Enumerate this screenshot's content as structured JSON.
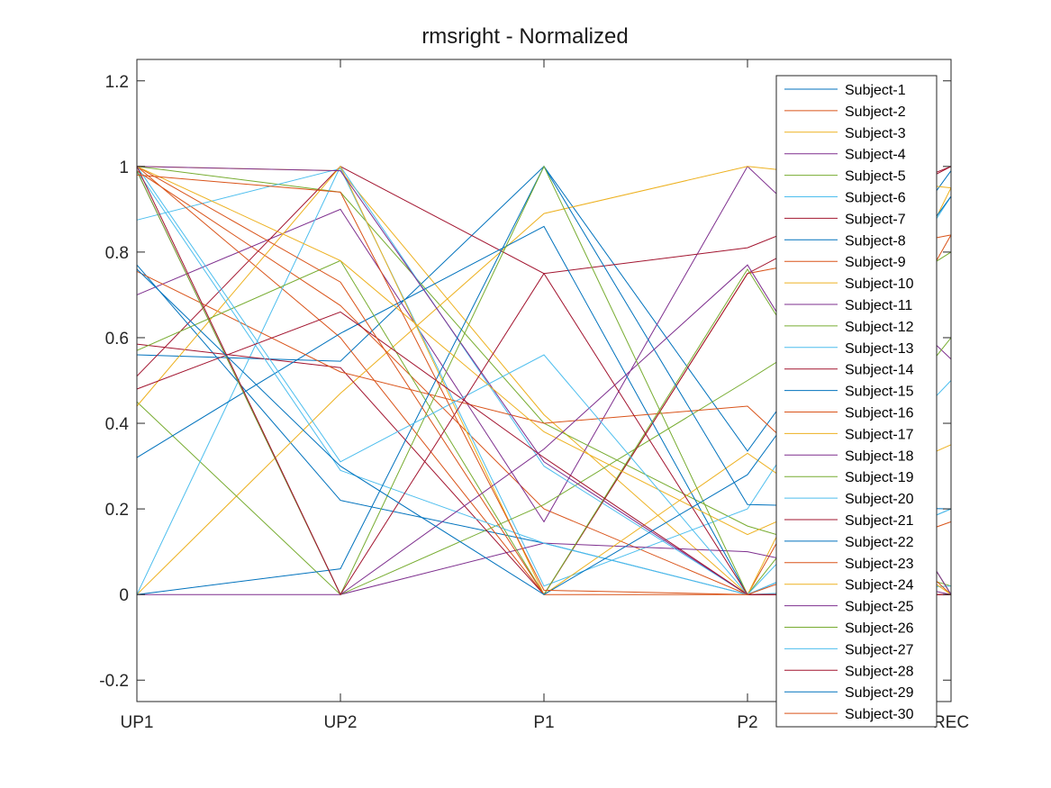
{
  "chart_data": {
    "type": "line",
    "title": "rmsright - Normalized",
    "categories": [
      "UP1",
      "UP2",
      "P1",
      "P2",
      "REC"
    ],
    "ylim": [
      -0.25,
      1.25
    ],
    "yticks": [
      -0.2,
      0,
      0.2,
      0.4,
      0.6,
      0.8,
      1,
      1.2
    ],
    "ytick_labels": [
      "-0.2",
      "0",
      "0.2",
      "0.4",
      "0.6",
      "0.8",
      "1",
      "1.2"
    ],
    "grid": false,
    "legend_position": "top-right",
    "colors": [
      "#0072BD",
      "#D95319",
      "#EDB120",
      "#7E2F8E",
      "#77AC30",
      "#4DBEEE",
      "#A2142F"
    ],
    "series": [
      {
        "name": "Subject-1",
        "values": [
          0.56,
          0.545,
          1.0,
          0.335,
          0.99
        ]
      },
      {
        "name": "Subject-2",
        "values": [
          0.99,
          0.675,
          0.2,
          0.0,
          0.84
        ]
      },
      {
        "name": "Subject-3",
        "values": [
          1.0,
          0.99,
          0.42,
          0.0,
          0.95
        ]
      },
      {
        "name": "Subject-4",
        "values": [
          0.7,
          0.9,
          0.17,
          1.0,
          0.55
        ]
      },
      {
        "name": "Subject-5",
        "values": [
          1.0,
          0.94,
          0.4,
          0.16,
          0.02
        ]
      },
      {
        "name": "Subject-6",
        "values": [
          0.875,
          0.995,
          0.02,
          0.2,
          0.93
        ]
      },
      {
        "name": "Subject-7",
        "values": [
          0.51,
          1.0,
          0.75,
          0.81,
          1.0
        ]
      },
      {
        "name": "Subject-8",
        "values": [
          0.77,
          0.22,
          0.12,
          0.0,
          0.2
        ]
      },
      {
        "name": "Subject-9",
        "values": [
          1.0,
          0.6,
          0.0,
          0.75,
          0.84
        ]
      },
      {
        "name": "Subject-10",
        "values": [
          0.0,
          0.47,
          0.89,
          1.0,
          0.95
        ]
      },
      {
        "name": "Subject-11",
        "values": [
          0.0,
          0.0,
          0.12,
          0.1,
          0.0
        ]
      },
      {
        "name": "Subject-12",
        "values": [
          0.45,
          0.0,
          0.21,
          0.5,
          0.8
        ]
      },
      {
        "name": "Subject-13",
        "values": [
          0.0,
          1.0,
          0.3,
          0.0,
          0.02
        ]
      },
      {
        "name": "Subject-14",
        "values": [
          0.585,
          0.53,
          0.0,
          0.75,
          1.0
        ]
      },
      {
        "name": "Subject-15",
        "values": [
          0.32,
          0.61,
          0.86,
          0.0,
          0.0
        ]
      },
      {
        "name": "Subject-16",
        "values": [
          0.755,
          0.52,
          0.4,
          0.44,
          0.0
        ]
      },
      {
        "name": "Subject-17",
        "values": [
          0.44,
          1.0,
          0.0,
          0.33,
          0.0
        ]
      },
      {
        "name": "Subject-18",
        "values": [
          1.0,
          0.99,
          0.31,
          0.0,
          0.0
        ]
      },
      {
        "name": "Subject-19",
        "values": [
          0.57,
          0.78,
          0.0,
          0.76,
          0.0
        ]
      },
      {
        "name": "Subject-20",
        "values": [
          0.99,
          0.29,
          0.12,
          0.0,
          0.2
        ]
      },
      {
        "name": "Subject-21",
        "values": [
          0.48,
          0.66,
          0.32,
          0.0,
          0.0
        ]
      },
      {
        "name": "Subject-22",
        "values": [
          0.0,
          0.06,
          1.0,
          0.21,
          0.2
        ]
      },
      {
        "name": "Subject-23",
        "values": [
          1.0,
          0.73,
          0.0,
          0.0,
          0.0
        ]
      },
      {
        "name": "Subject-24",
        "values": [
          1.0,
          0.78,
          0.38,
          0.14,
          0.35
        ]
      },
      {
        "name": "Subject-25",
        "values": [
          0.99,
          0.0,
          0.34,
          0.77,
          0.0
        ]
      },
      {
        "name": "Subject-26",
        "values": [
          0.99,
          0.0,
          1.0,
          0.0,
          0.6
        ]
      },
      {
        "name": "Subject-27",
        "values": [
          1.0,
          0.31,
          0.56,
          0.0,
          0.5
        ]
      },
      {
        "name": "Subject-28",
        "values": [
          1.0,
          0.0,
          0.75,
          0.0,
          0.0
        ]
      },
      {
        "name": "Subject-29",
        "values": [
          0.76,
          0.3,
          0.0,
          0.28,
          0.93
        ]
      },
      {
        "name": "Subject-30",
        "values": [
          0.98,
          0.94,
          0.01,
          0.0,
          0.17
        ]
      }
    ]
  }
}
